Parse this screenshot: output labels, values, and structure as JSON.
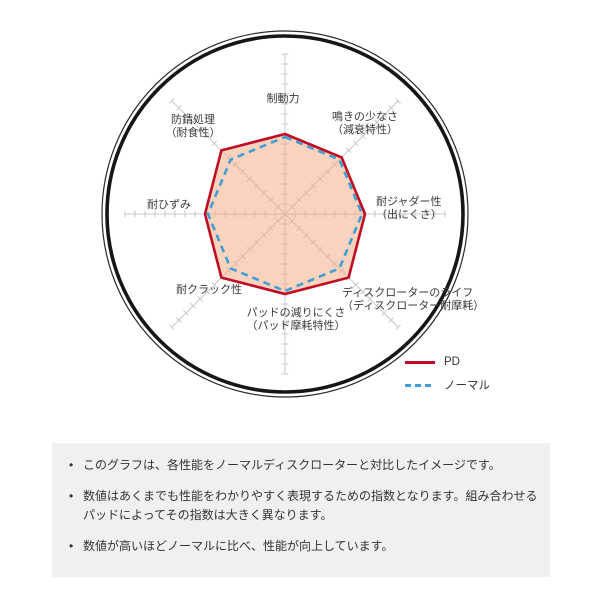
{
  "chart_data": {
    "type": "radar",
    "title": "",
    "axes": [
      "制動力",
      "鳴きの少なさ（減衰特性）",
      "耐ジャダー性（出にくさ）",
      "ディスクローターのライフ（ディスクローター耐摩耗）",
      "パッドの減りにくさ（パッド摩耗特性）",
      "耐クラック性",
      "耐ひずみ",
      "防錆処理（耐食性）"
    ],
    "series": [
      {
        "name": "PD",
        "style": "solid",
        "color": "#c00d23",
        "values": [
          8,
          8,
          8,
          9,
          8,
          9,
          8,
          9
        ]
      },
      {
        "name": "ノーマル",
        "style": "dashed",
        "color": "#3f9fd4",
        "values": [
          8,
          8,
          8,
          8,
          8,
          8,
          8,
          8
        ]
      }
    ],
    "scale": {
      "min": 0,
      "tick_interval": 1,
      "axis_drawn_to": 16
    },
    "grid": "8 radial ticked axes inside a double-ring circle (disc rotor outline)",
    "legend_position": "bottom-right",
    "fill_color": "#f5a880",
    "axis_color": "#c9c9c9",
    "ring_color": "#161616"
  },
  "chart": {
    "axis_labels": [
      "制動力",
      "鳴きの少なさ\n（減衰特性）",
      "耐ジャダー性\n（出にくさ）",
      "ディスクローターのライフ\n（ディスクローター耐摩耗）",
      "パッドの減りにくさ\n（パッド摩耗特性）",
      "耐クラック性",
      "耐ひずみ",
      "防錆処理\n（耐食性）"
    ]
  },
  "legend": {
    "pd_label": "PD",
    "normal_label": "ノーマル"
  },
  "notes": {
    "items": [
      "このグラフは、各性能をノーマルディスクローターと対比したイメージです。",
      "数値はあくまでも性能をわかりやすく表現するための指数となります。組み合わせるパッドによってその指数は大きく異なります。",
      "数値が高いほどノーマルに比べ、性能が向上しています。"
    ]
  }
}
